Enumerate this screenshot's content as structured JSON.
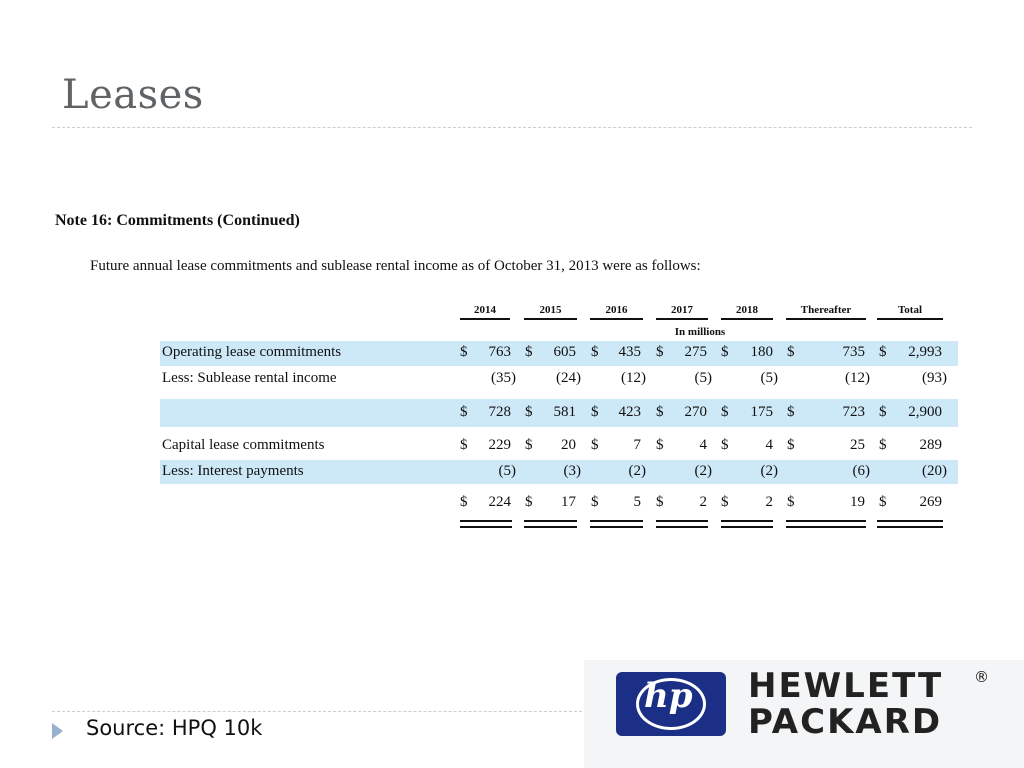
{
  "slide": {
    "title": "Leases",
    "source": "Source: HPQ 10k"
  },
  "note": {
    "heading": "Note 16: Commitments (Continued)",
    "intro": "Future annual lease commitments and sublease rental income as of October 31, 2013 were as follows:"
  },
  "table": {
    "columns": [
      "2014",
      "2015",
      "2016",
      "2017",
      "2018",
      "Thereafter",
      "Total"
    ],
    "units": "In millions",
    "currency_symbol": "$",
    "rows": [
      {
        "label": "Operating lease commitments",
        "values": [
          "763",
          "605",
          "435",
          "275",
          "180",
          "735",
          "2,993"
        ]
      },
      {
        "label": "Less: Sublease rental income",
        "values": [
          "(35)",
          "(24)",
          "(12)",
          "(5)",
          "(5)",
          "(12)",
          "(93)"
        ]
      },
      {
        "label": "",
        "values": [
          "728",
          "581",
          "423",
          "270",
          "175",
          "723",
          "2,900"
        ]
      },
      {
        "label": "Capital lease commitments",
        "values": [
          "229",
          "20",
          "7",
          "4",
          "4",
          "25",
          "289"
        ]
      },
      {
        "label": "Less: Interest payments",
        "values": [
          "(5)",
          "(3)",
          "(2)",
          "(2)",
          "(2)",
          "(6)",
          "(20)"
        ]
      },
      {
        "label": "",
        "values": [
          "224",
          "17",
          "5",
          "2",
          "2",
          "19",
          "269"
        ]
      }
    ]
  },
  "logo": {
    "mark": "hp",
    "line1": "HEWLETT",
    "line2": "PACKARD",
    "registered": "®"
  },
  "colors": {
    "row_highlight": "#cde9f8",
    "hp_blue": "#1c2f86",
    "title_gray": "#5f6366"
  }
}
